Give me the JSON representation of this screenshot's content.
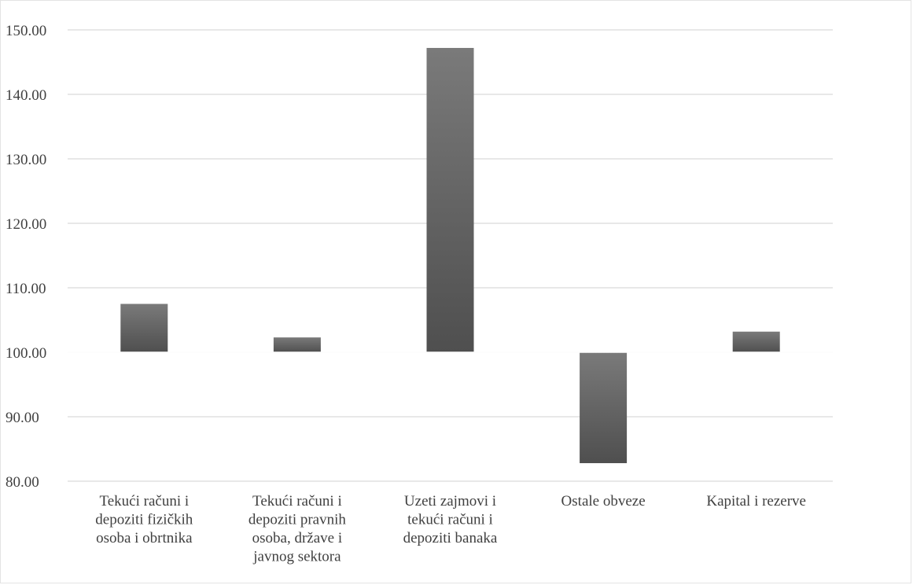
{
  "chart_data": {
    "type": "bar",
    "title": "",
    "xlabel": "",
    "ylabel": "",
    "baseline": 100,
    "ylim": [
      80,
      150
    ],
    "yticks": [
      "80.00",
      "90.00",
      "100.00",
      "110.00",
      "120.00",
      "130.00",
      "140.00",
      "150.00"
    ],
    "ytick_values": [
      80,
      90,
      100,
      110,
      120,
      130,
      140,
      150
    ],
    "categories": [
      [
        "Tekući računi i",
        "depoziti fizičkih",
        "osoba i obrtnika"
      ],
      [
        "Tekući računi i",
        "depoziti pravnih",
        "osoba, države i",
        "javnog sektora"
      ],
      [
        "Uzeti zajmovi i",
        "tekući računi i",
        "depoziti banaka"
      ],
      [
        "Ostale obveze"
      ],
      [
        "Kapital i rezerve"
      ]
    ],
    "values": [
      107.5,
      102.3,
      147.2,
      82.8,
      103.2
    ],
    "grid": true,
    "colors": {
      "bar_light": "#7a7a7a",
      "bar_dark": "#4f4f4f",
      "grid": "#d9d9d9",
      "text": "#404040"
    }
  }
}
